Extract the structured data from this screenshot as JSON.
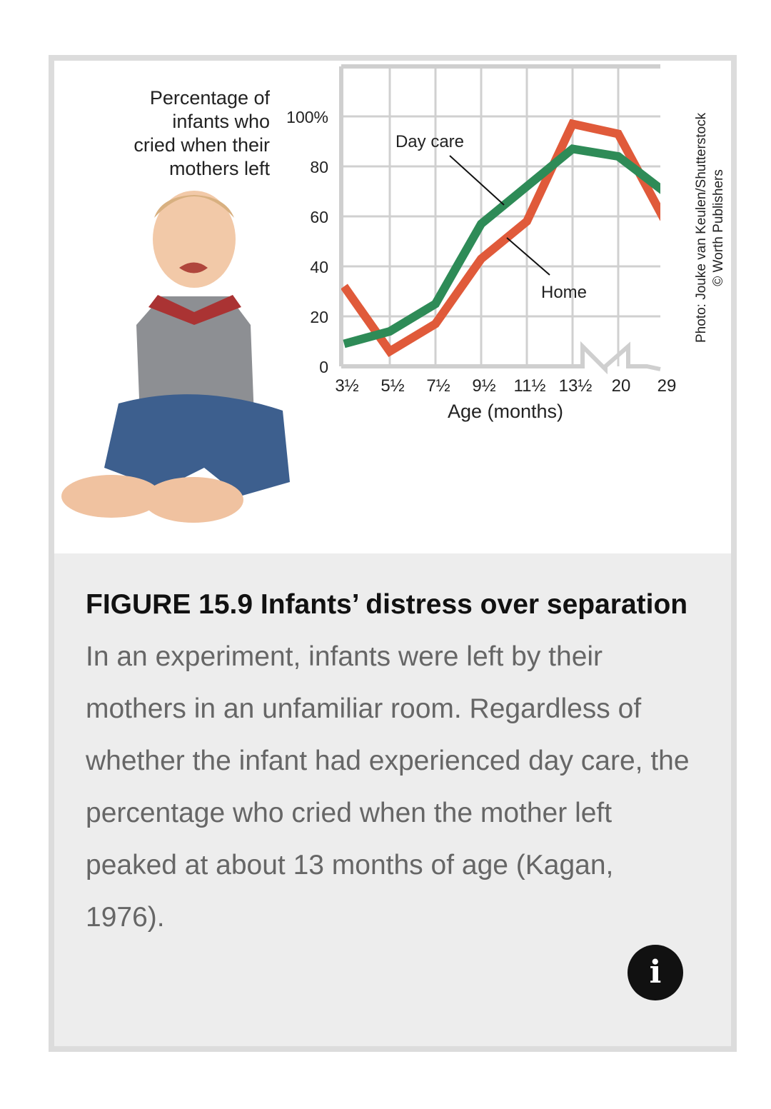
{
  "figure": {
    "y_axis_title_lines": [
      "Percentage of",
      "infants who",
      "cried when their",
      "mothers left"
    ],
    "photo_credit_lines": [
      "Photo: Jouke van Keulen/Shutterstock",
      "© Worth Publishers"
    ],
    "caption_title": "FIGURE 15.9 Infants’ distress over separation",
    "caption_text": " In an experiment, infants were left by their mothers in an unfamiliar room. Regardless of whether the infant had experienced day care, the percentage who cried when the mother left peaked at about 13 months of age (Kagan, 1976).",
    "info_icon": "i"
  },
  "chart_data": {
    "type": "line",
    "title": "",
    "xlabel": "Age (months)",
    "ylabel": "Percentage of infants who cried when their mothers left",
    "categories": [
      "3½",
      "5½",
      "7½",
      "9½",
      "11½",
      "13½",
      "20",
      "29"
    ],
    "yticks": [
      "0",
      "20",
      "40",
      "60",
      "80",
      "100%"
    ],
    "ylim": [
      0,
      120
    ],
    "grid": true,
    "series": [
      {
        "name": "Day care",
        "color": "#2e8b57",
        "values": [
          9,
          14,
          25,
          57,
          72,
          87,
          84,
          70
        ]
      },
      {
        "name": "Home",
        "color": "#e05a3a",
        "values": [
          32,
          6,
          17,
          43,
          58,
          97,
          93,
          59
        ]
      }
    ],
    "annotations": [
      "Day care",
      "Home"
    ]
  }
}
